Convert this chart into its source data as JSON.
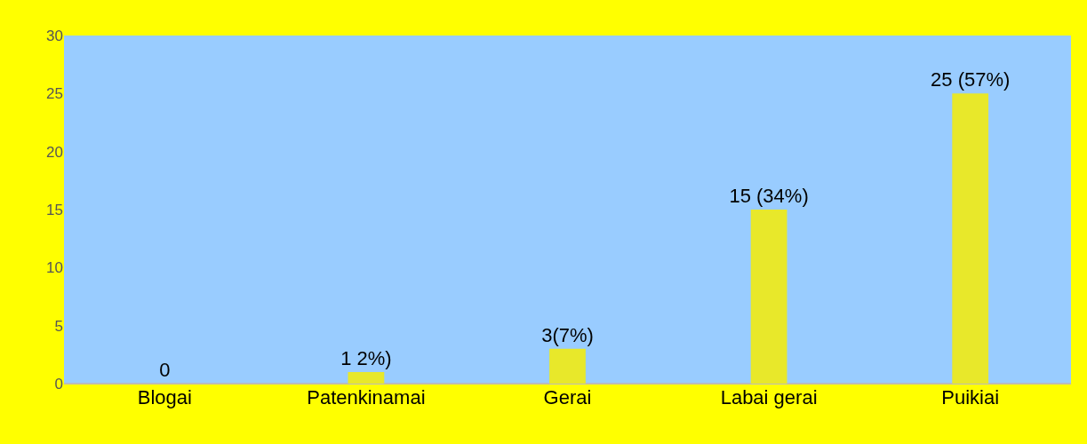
{
  "chart_data": {
    "type": "bar",
    "categories": [
      "Blogai",
      "Patenkinamai",
      "Gerai",
      "Labai gerai",
      "Puikiai"
    ],
    "values": [
      0,
      1,
      3,
      15,
      25
    ],
    "value_labels": [
      "0",
      "1 2%)",
      "3(7%)",
      "15 (34%)",
      "25 (57%)"
    ],
    "color": "#e8e82a",
    "ylim": [
      0,
      30
    ],
    "yticks": [
      0,
      5,
      10,
      15,
      20,
      25,
      30
    ],
    "grid": false
  }
}
